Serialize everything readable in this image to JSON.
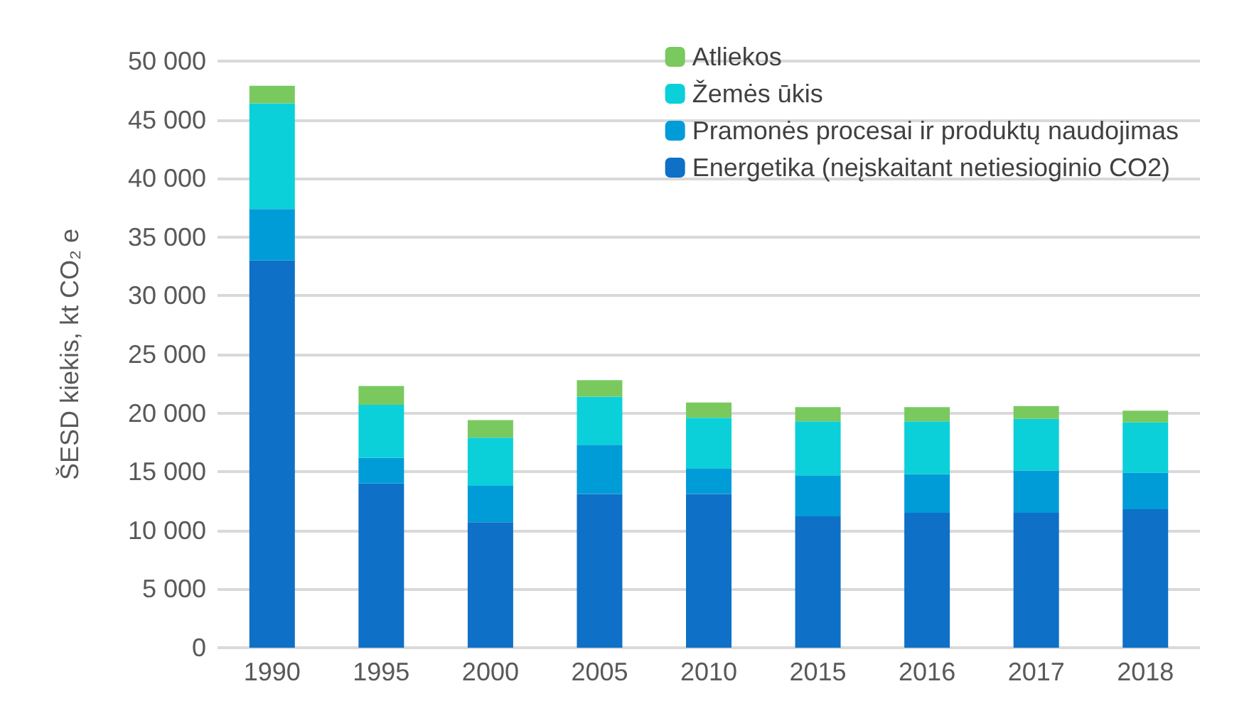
{
  "chart_data": {
    "type": "bar",
    "stacked": true,
    "ylabel": "ŠESD kiekis, kt CO₂ e",
    "categories": [
      "1990",
      "1995",
      "2000",
      "2005",
      "2010",
      "2015",
      "2016",
      "2017",
      "2018"
    ],
    "series": [
      {
        "name": "Energetika (neįskaitant netiesioginio CO2)",
        "color": "#0e70c6",
        "values": [
          33000,
          14000,
          10700,
          13100,
          13100,
          11200,
          11500,
          11500,
          11800
        ]
      },
      {
        "name": "Pramonės procesai ir produktų naudojimas",
        "color": "#009cd8",
        "values": [
          4400,
          2200,
          3100,
          4200,
          2200,
          3500,
          3300,
          3600,
          3100
        ]
      },
      {
        "name": "Žemės ūkis",
        "color": "#0bd0d9",
        "values": [
          9000,
          4500,
          4100,
          4100,
          4300,
          4600,
          4500,
          4400,
          4300
        ]
      },
      {
        "name": "Atliekos",
        "color": "#79c95f",
        "values": [
          1500,
          1600,
          1500,
          1400,
          1300,
          1200,
          1200,
          1100,
          1000
        ]
      }
    ],
    "ylim": [
      0,
      50000
    ],
    "yticks": [
      0,
      {
        "value": 5000,
        "label": "5 000"
      },
      {
        "value": 10000,
        "label": "10 000"
      },
      {
        "value": 15000,
        "label": "15 000"
      },
      {
        "value": 20000,
        "label": "20 000"
      },
      {
        "value": 25000,
        "label": "25 000"
      },
      {
        "value": 30000,
        "label": "30 000"
      },
      {
        "value": 35000,
        "label": "35 000"
      },
      {
        "value": 40000,
        "label": "40 000"
      },
      {
        "value": 45000,
        "label": "45 000"
      },
      {
        "value": 50000,
        "label": "50 000"
      }
    ],
    "grid": "y",
    "legend": "top right"
  }
}
